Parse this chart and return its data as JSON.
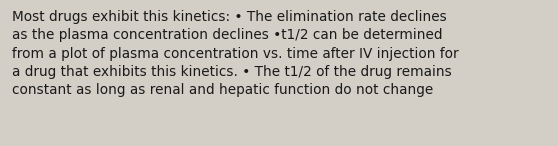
{
  "background_color": "#d3cfc7",
  "text_color": "#1a1a1a",
  "text": "Most drugs exhibit this kinetics: • The elimination rate declines\nas the plasma concentration declines •t1/2 can be determined\nfrom a plot of plasma concentration vs. time after IV injection for\na drug that exhibits this kinetics. • The t1/2 of the drug remains\nconstant as long as renal and hepatic function do not change",
  "font_size": 9.8,
  "fig_width": 5.58,
  "fig_height": 1.46,
  "dpi": 100
}
